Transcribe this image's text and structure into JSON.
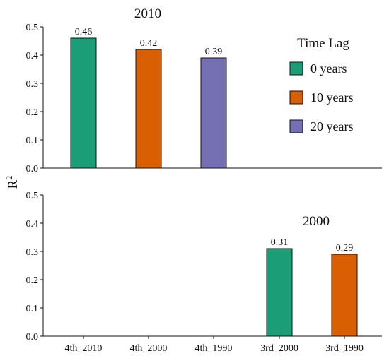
{
  "chart_data": {
    "type": "bar",
    "categories": [
      "4th_2010",
      "4th_2000",
      "4th_1990",
      "3rd_2000",
      "3rd_1990"
    ],
    "ylabel": "R",
    "ylabel_superscript": "2",
    "ylim": [
      0,
      0.5
    ],
    "yticks": [
      "0.0",
      "0.1",
      "0.2",
      "0.3",
      "0.4",
      "0.5"
    ],
    "grid": false,
    "legend": {
      "title": "Time Lag",
      "position": "top-right",
      "entries": [
        {
          "label": "0 years",
          "color": "#1b9e77"
        },
        {
          "label": "10 years",
          "color": "#d95f02"
        },
        {
          "label": "20 years",
          "color": "#7570b3"
        }
      ]
    },
    "panels": [
      {
        "title": "2010",
        "bars": [
          {
            "category": "4th_2010",
            "series": "0 years",
            "value": 0.46,
            "label": "0.46"
          },
          {
            "category": "4th_2000",
            "series": "10 years",
            "value": 0.42,
            "label": "0.42"
          },
          {
            "category": "4th_1990",
            "series": "20 years",
            "value": 0.39,
            "label": "0.39"
          }
        ]
      },
      {
        "title": "2000",
        "bars": [
          {
            "category": "3rd_2000",
            "series": "0 years",
            "value": 0.31,
            "label": "0.31"
          },
          {
            "category": "3rd_1990",
            "series": "10 years",
            "value": 0.29,
            "label": "0.29"
          }
        ]
      }
    ]
  }
}
